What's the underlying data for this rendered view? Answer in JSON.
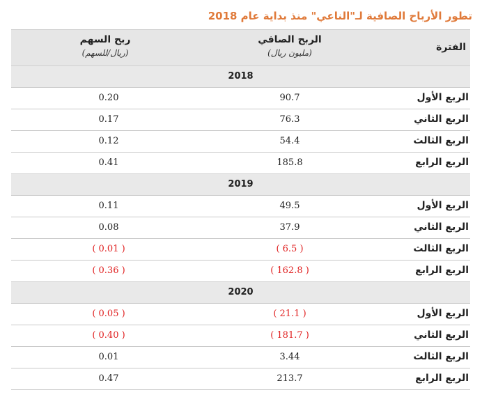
{
  "title": "تطور الأرباح الصافية لـ\"الناعي\" منذ بداية عام 2018",
  "headers": {
    "period": "الفترة",
    "net_profit": "الربح الصافي",
    "net_profit_unit": "(مليون ريال)",
    "eps": "ربح السهم",
    "eps_unit": "(ريال/للسهم)"
  },
  "years": [
    {
      "year": "2018",
      "rows": [
        {
          "period": "الربع الأول",
          "net": "90.7",
          "eps": "0.20",
          "neg": false
        },
        {
          "period": "الربع الثاني",
          "net": "76.3",
          "eps": "0.17",
          "neg": false
        },
        {
          "period": "الربع الثالث",
          "net": "54.4",
          "eps": "0.12",
          "neg": false
        },
        {
          "period": "الربع الرابع",
          "net": "185.8",
          "eps": "0.41",
          "neg": false
        }
      ]
    },
    {
      "year": "2019",
      "rows": [
        {
          "period": "الربع الأول",
          "net": "49.5",
          "eps": "0.11",
          "neg": false
        },
        {
          "period": "الربع الثاني",
          "net": "37.9",
          "eps": "0.08",
          "neg": false
        },
        {
          "period": "الربع الثالث",
          "net": "( 6.5 )",
          "eps": "( 0.01 )",
          "neg": true
        },
        {
          "period": "الربع الرابع",
          "net": "( 162.8 )",
          "eps": "( 0.36 )",
          "neg": true
        }
      ]
    },
    {
      "year": "2020",
      "rows": [
        {
          "period": "الربع الأول",
          "net": "( 21.1 )",
          "eps": "( 0.05 )",
          "neg": true
        },
        {
          "period": "الربع الثاني",
          "net": "( 181.7 )",
          "eps": "( 0.40 )",
          "neg": true
        },
        {
          "period": "الربع الثالث",
          "net": "3.44",
          "eps": "0.01",
          "neg": false
        },
        {
          "period": "الربع الرابع",
          "net": "213.7",
          "eps": "0.47",
          "neg": false
        }
      ]
    }
  ],
  "colors": {
    "title": "#e07a3a",
    "negative": "#e02020",
    "header_bg": "#e6e6e6"
  }
}
